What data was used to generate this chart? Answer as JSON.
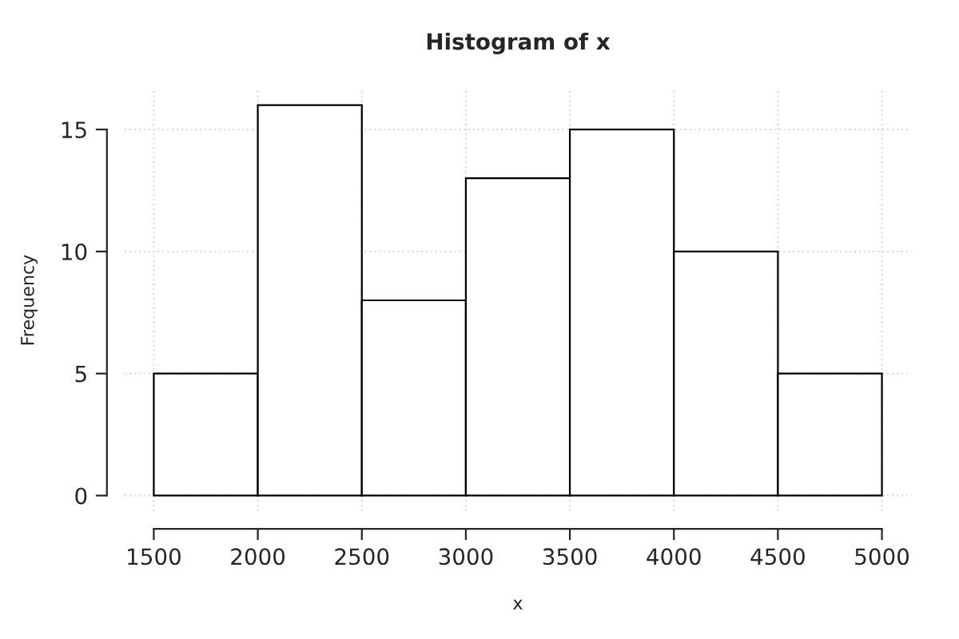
{
  "chart_data": {
    "type": "histogram",
    "title": "Histogram of x",
    "xlabel": "x",
    "ylabel": "Frequency",
    "bins": [
      1500,
      2000,
      2500,
      3000,
      3500,
      4000,
      4500,
      5000
    ],
    "values": [
      5,
      16,
      8,
      13,
      15,
      10,
      5
    ],
    "color": "#ffffff",
    "xlim": [
      1360,
      5140
    ],
    "ylim": [
      -0.64,
      16.64
    ],
    "xticks": [
      1500,
      2000,
      2500,
      3000,
      3500,
      4000,
      4500,
      5000
    ],
    "yticks": [
      0,
      5,
      10,
      15
    ],
    "grid": true
  }
}
